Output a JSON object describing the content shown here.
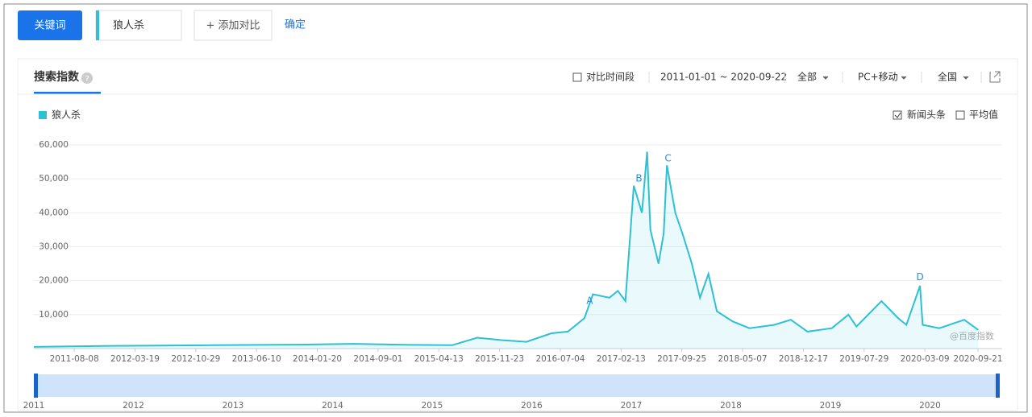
{
  "ui": {
    "keyword_button": "关键词",
    "keyword_input": "狼人杀",
    "add_compare": "+ 添加对比",
    "confirm": "确定",
    "tab_title": "搜索指数",
    "compare_period": "对比时间段",
    "date_range": "2011-01-01 ~ 2020-09-22",
    "filter_all": "全部",
    "filter_device": "PC+移动",
    "filter_region": "全国",
    "news_headlines": "新闻头条",
    "average": "平均值",
    "watermark": "@百度指数",
    "navigator_years": [
      "2011",
      "2012",
      "2013",
      "2014",
      "2015",
      "2016",
      "2017",
      "2018",
      "2019",
      "2020"
    ]
  },
  "chart_data": {
    "type": "line",
    "x": [
      "2011-03-12",
      "2011-06-01",
      "2012-01-01",
      "2013-01-01",
      "2014-01-01",
      "2014-06-01",
      "2015-01-01",
      "2015-06-01",
      "2015-09-01",
      "2015-12-01",
      "2016-03-01",
      "2016-06-01",
      "2016-08-01",
      "2016-10-01",
      "2016-11-01",
      "2017-01-01",
      "2017-02-01",
      "2017-03-01",
      "2017-04-01",
      "2017-05-01",
      "2017-05-20",
      "2017-06-01",
      "2017-07-01",
      "2017-07-20",
      "2017-08-01",
      "2017-09-01",
      "2017-10-01",
      "2017-11-01",
      "2017-12-01",
      "2018-01-01",
      "2018-02-01",
      "2018-04-01",
      "2018-06-01",
      "2018-09-01",
      "2018-11-01",
      "2019-01-01",
      "2019-04-01",
      "2019-06-01",
      "2019-07-01",
      "2019-10-01",
      "2019-12-01",
      "2020-01-01",
      "2020-02-20",
      "2020-03-01",
      "2020-05-01",
      "2020-08-01",
      "2020-09-22"
    ],
    "series": [
      {
        "name": "狼人杀",
        "color": "#2ec0d3",
        "values": [
          500,
          600,
          800,
          1000,
          1200,
          1400,
          1100,
          1000,
          3200,
          2500,
          2000,
          4500,
          5000,
          9000,
          16000,
          15000,
          17000,
          14000,
          48000,
          40000,
          58000,
          35000,
          25000,
          34000,
          54000,
          40000,
          33000,
          25000,
          15000,
          22000,
          11000,
          8000,
          6000,
          7000,
          8500,
          5000,
          6000,
          10000,
          6500,
          14000,
          9000,
          7000,
          18500,
          7000,
          6000,
          8500,
          5500
        ]
      }
    ],
    "xlim": [
      "2011-03-12",
      "2020-12-19"
    ],
    "xticks": [
      "2011-08-08",
      "2012-03-19",
      "2012-10-29",
      "2013-06-10",
      "2014-01-20",
      "2014-09-01",
      "2015-04-13",
      "2015-11-23",
      "2016-07-04",
      "2017-02-13",
      "2017-09-25",
      "2018-05-07",
      "2018-12-17",
      "2019-07-29",
      "2020-03-09",
      "2020-09-21"
    ],
    "ylim": [
      0,
      60000
    ],
    "yticks": [
      {
        "value": 10000,
        "label": "10,000"
      },
      {
        "value": 20000,
        "label": "20,000"
      },
      {
        "value": 30000,
        "label": "30,000"
      },
      {
        "value": 40000,
        "label": "40,000"
      },
      {
        "value": 50000,
        "label": "50,000"
      },
      {
        "value": 60000,
        "label": "60,000"
      }
    ],
    "grid": true,
    "annotations": [
      {
        "text": "A",
        "x": "2016-10-20",
        "y": 14000
      },
      {
        "text": "B",
        "x": "2017-04-20",
        "y": 50000
      },
      {
        "text": "C",
        "x": "2017-08-05",
        "y": 56000
      },
      {
        "text": "D",
        "x": "2020-02-20",
        "y": 21000
      }
    ]
  }
}
